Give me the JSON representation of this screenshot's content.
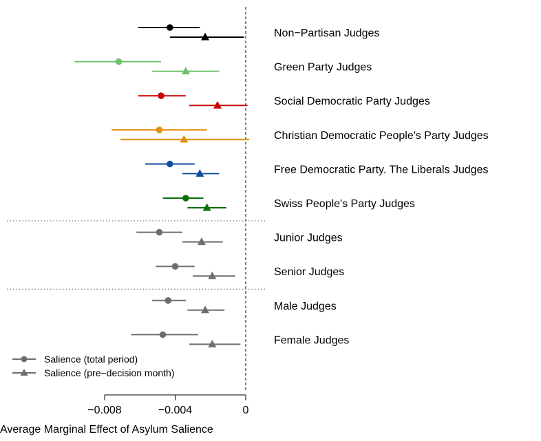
{
  "chart_data": {
    "type": "coefficient-plot",
    "xlabel": "Average Marginal Effect of Asylum Salience",
    "xlim": [
      -0.0098,
      0.0006
    ],
    "x_ticks": [
      -0.008,
      -0.004,
      0
    ],
    "x_tick_labels": [
      "−0.008",
      "−0.004",
      "0"
    ],
    "reference_line": 0,
    "legend": {
      "position": "bottom-left",
      "entries": [
        {
          "label": "Salience (total period)",
          "marker": "circle"
        },
        {
          "label": "Salience (pre−decision month)",
          "marker": "triangle"
        }
      ]
    },
    "group_separators_after": [
      "Swiss People's Party Judges",
      "Senior Judges"
    ],
    "groups": [
      {
        "label": "Non−Partisan Judges",
        "color": "#000000",
        "total": {
          "est": -0.0043,
          "lo": -0.0061,
          "hi": -0.0026
        },
        "pre": {
          "est": -0.0023,
          "lo": -0.0043,
          "hi": -0.0001
        }
      },
      {
        "label": "Green Party Judges",
        "color": "#6DC36D",
        "total": {
          "est": -0.0072,
          "lo": -0.0097,
          "hi": -0.0048
        },
        "pre": {
          "est": -0.0034,
          "lo": -0.0053,
          "hi": -0.0015
        }
      },
      {
        "label": "Social Democratic Party Judges",
        "color": "#CC0000",
        "total": {
          "est": -0.0048,
          "lo": -0.0061,
          "hi": -0.0034
        },
        "pre": {
          "est": -0.0016,
          "lo": -0.0032,
          "hi": 0.0001
        }
      },
      {
        "label": "Christian Democratic People's Party Judges",
        "color": "#E08E0B",
        "total": {
          "est": -0.0049,
          "lo": -0.0076,
          "hi": -0.0022
        },
        "pre": {
          "est": -0.0035,
          "lo": -0.0071,
          "hi": 0.0002
        }
      },
      {
        "label": "Free Democratic Party. The Liberals Judges",
        "color": "#114E9E",
        "total": {
          "est": -0.0043,
          "lo": -0.0057,
          "hi": -0.0029
        },
        "pre": {
          "est": -0.0026,
          "lo": -0.0036,
          "hi": -0.0015
        }
      },
      {
        "label": "Swiss People's Party Judges",
        "color": "#0A6E0A",
        "total": {
          "est": -0.0034,
          "lo": -0.0047,
          "hi": -0.0024
        },
        "pre": {
          "est": -0.0022,
          "lo": -0.0033,
          "hi": -0.0011
        }
      },
      {
        "label": "Junior Judges",
        "color": "#6E6E6E",
        "total": {
          "est": -0.0049,
          "lo": -0.0062,
          "hi": -0.0036
        },
        "pre": {
          "est": -0.0025,
          "lo": -0.0036,
          "hi": -0.0013
        }
      },
      {
        "label": "Senior Judges",
        "color": "#6E6E6E",
        "total": {
          "est": -0.004,
          "lo": -0.0051,
          "hi": -0.0029
        },
        "pre": {
          "est": -0.0019,
          "lo": -0.003,
          "hi": -0.0006
        }
      },
      {
        "label": "Male Judges",
        "color": "#6E6E6E",
        "total": {
          "est": -0.0044,
          "lo": -0.0053,
          "hi": -0.0034
        },
        "pre": {
          "est": -0.0023,
          "lo": -0.0033,
          "hi": -0.0012
        }
      },
      {
        "label": "Female Judges",
        "color": "#6E6E6E",
        "total": {
          "est": -0.0047,
          "lo": -0.0065,
          "hi": -0.0027
        },
        "pre": {
          "est": -0.0019,
          "lo": -0.0032,
          "hi": -0.0003
        }
      }
    ]
  }
}
